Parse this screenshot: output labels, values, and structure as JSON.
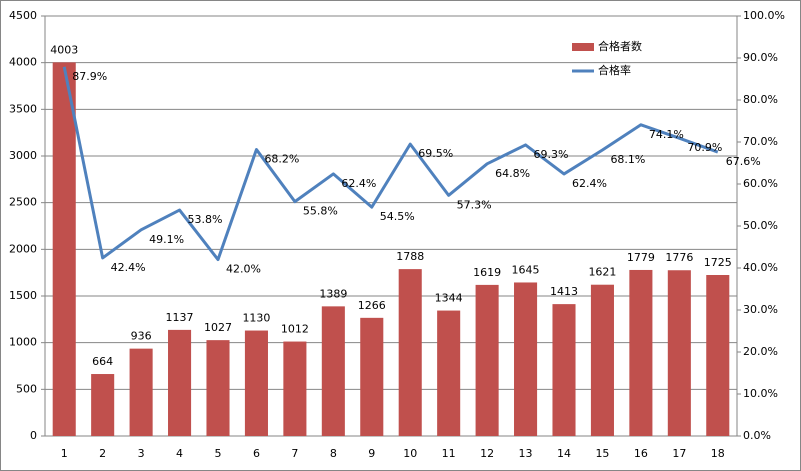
{
  "chart_data": {
    "type": "bar",
    "categories": [
      "1",
      "2",
      "3",
      "4",
      "5",
      "6",
      "7",
      "8",
      "9",
      "10",
      "11",
      "12",
      "13",
      "14",
      "15",
      "16",
      "17",
      "18"
    ],
    "series": [
      {
        "name": "合格者数",
        "type": "bar",
        "color": "#c0504d",
        "values": [
          4003,
          664,
          936,
          1137,
          1027,
          1130,
          1012,
          1389,
          1266,
          1788,
          1344,
          1619,
          1645,
          1413,
          1621,
          1779,
          1776,
          1725
        ]
      },
      {
        "name": "合格率",
        "type": "line",
        "axis": "y2",
        "color": "#4f81bd",
        "values": [
          87.9,
          42.4,
          49.1,
          53.8,
          42.0,
          68.2,
          55.8,
          62.4,
          54.5,
          69.5,
          57.3,
          64.8,
          69.3,
          62.4,
          68.1,
          74.1,
          70.9,
          67.6
        ],
        "value_labels": [
          "87.9%",
          "42.4%",
          "49.1%",
          "53.8%",
          "42.0%",
          "68.2%",
          "55.8%",
          "62.4%",
          "54.5%",
          "69.5%",
          "57.3%",
          "64.8%",
          "69.3%",
          "62.4%",
          "68.1%",
          "74.1%",
          "70.9%",
          "67.6%"
        ]
      }
    ],
    "ylim": [
      0,
      4500
    ],
    "yticks": [
      0,
      500,
      1000,
      1500,
      2000,
      2500,
      3000,
      3500,
      4000,
      4500
    ],
    "y2lim": [
      0,
      100
    ],
    "y2ticks": [
      {
        "value": 0,
        "label": "0.0%"
      },
      {
        "value": 10,
        "label": "10.0%"
      },
      {
        "value": 20,
        "label": "20.0%"
      },
      {
        "value": 30,
        "label": "30.0%"
      },
      {
        "value": 40,
        "label": "40.0%"
      },
      {
        "value": 50,
        "label": "50.0%"
      },
      {
        "value": 60,
        "label": "60.0%"
      },
      {
        "value": 70,
        "label": "70.0%"
      },
      {
        "value": 80,
        "label": "80.0%"
      },
      {
        "value": 90,
        "label": "90.0%"
      },
      {
        "value": 100,
        "label": "100.0%"
      }
    ],
    "grid": true,
    "legend": "top-right"
  }
}
